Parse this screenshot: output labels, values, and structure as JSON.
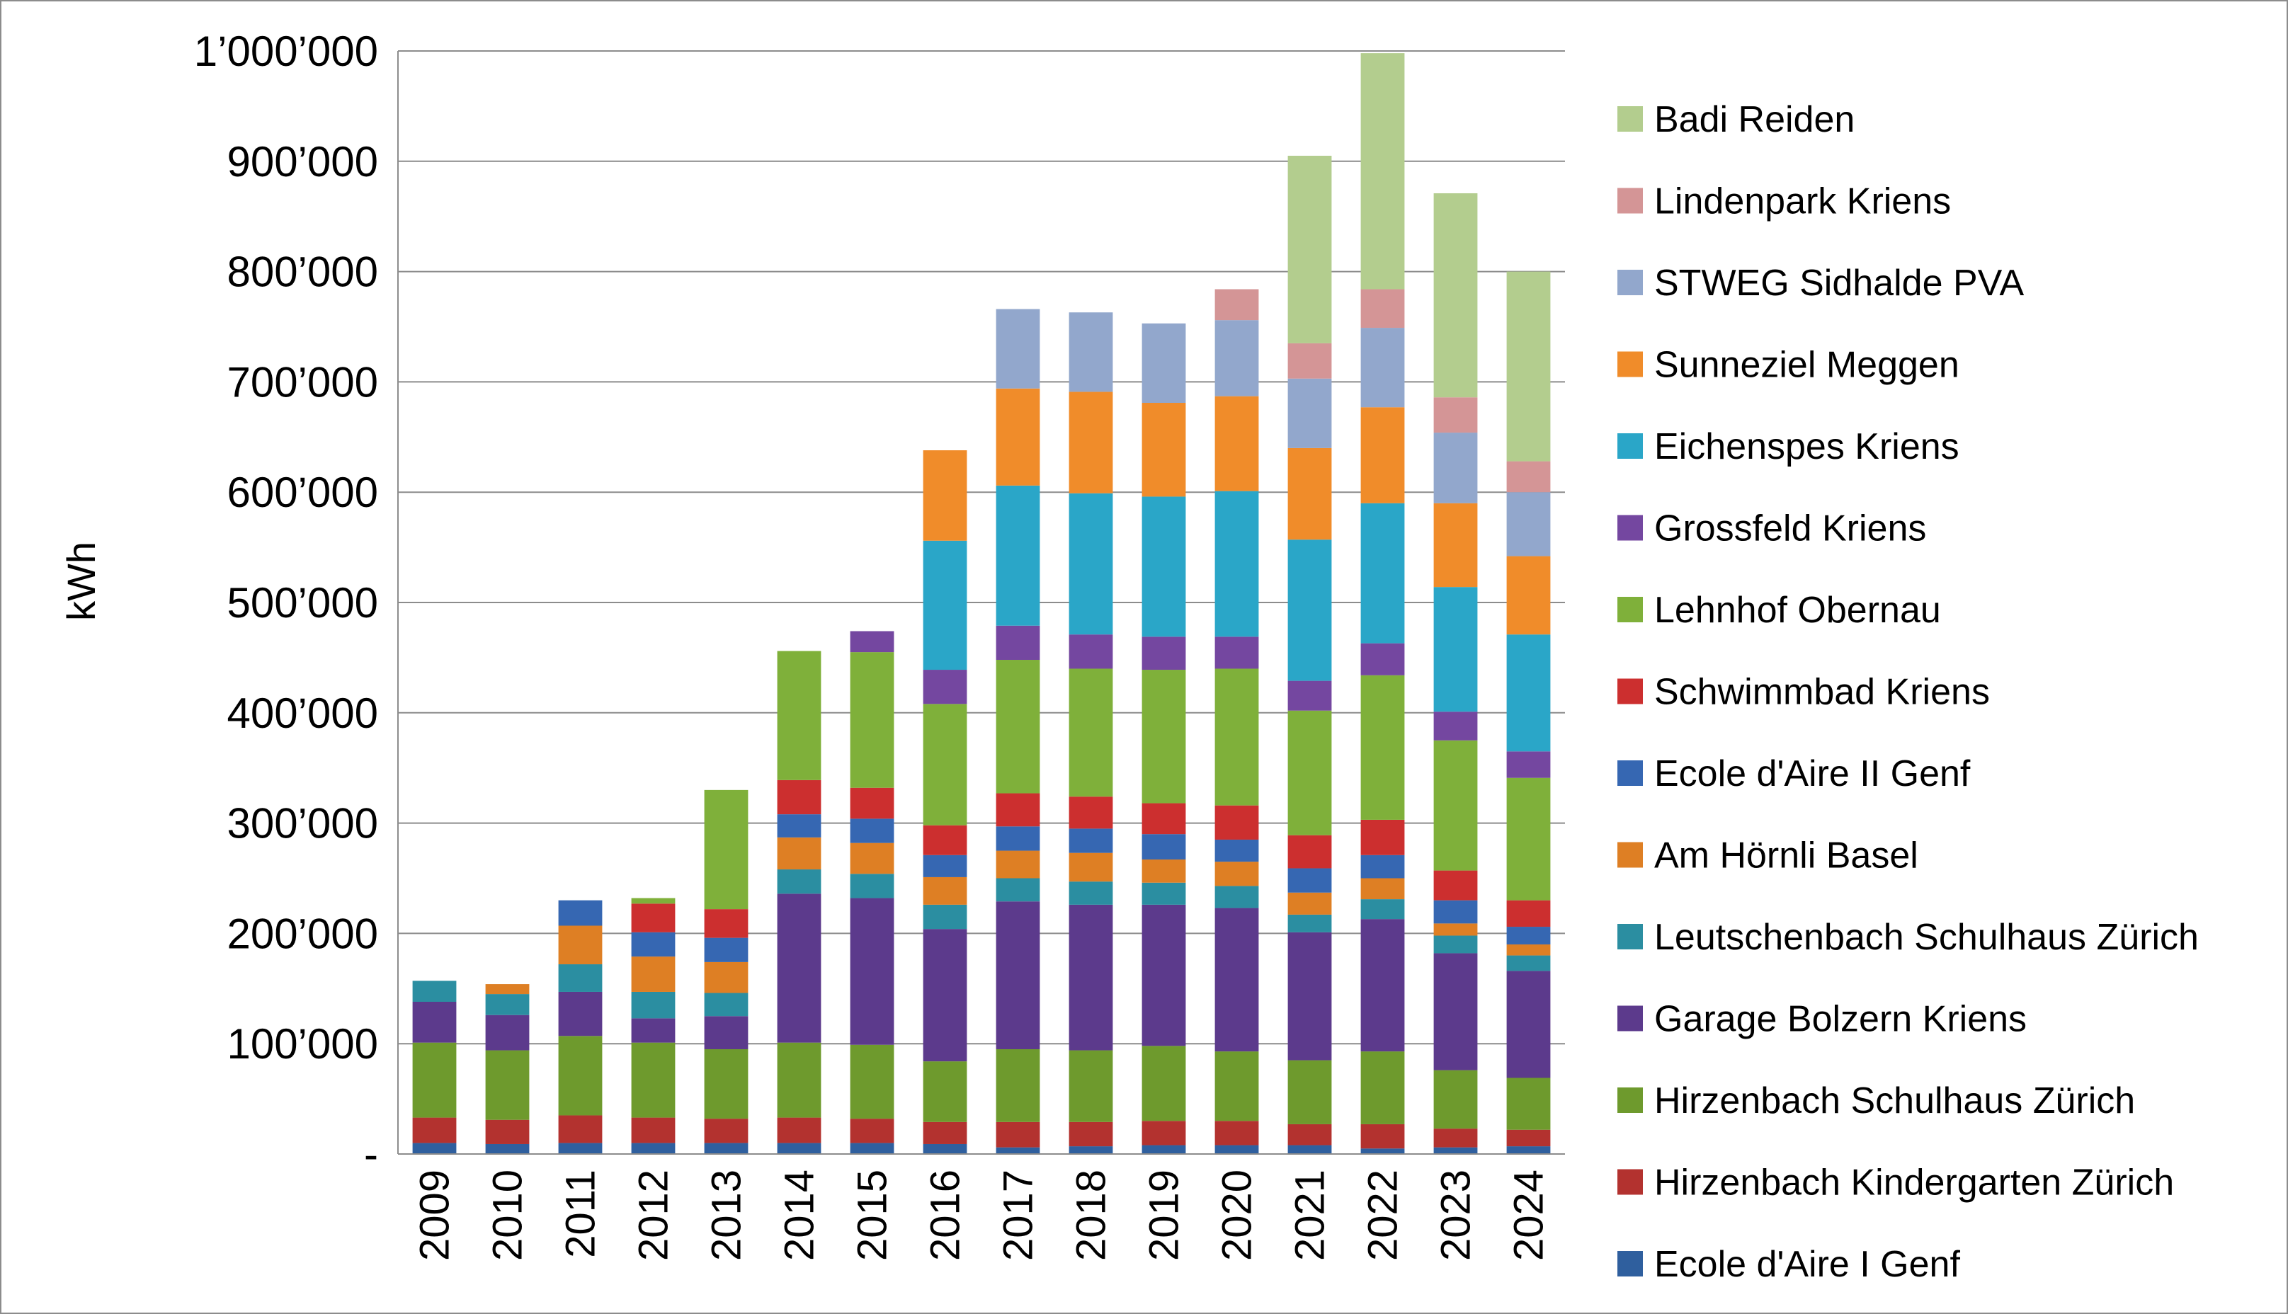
{
  "chart_data": {
    "type": "bar",
    "stacked": true,
    "title": "",
    "xlabel": "",
    "ylabel": "kWh",
    "ylim": [
      0,
      1000000
    ],
    "ytick_values": [
      0,
      100000,
      200000,
      300000,
      400000,
      500000,
      600000,
      700000,
      800000,
      900000,
      1000000
    ],
    "ytick_labels": [
      "-",
      "100’000",
      "200’000",
      "300’000",
      "400’000",
      "500’000",
      "600’000",
      "700’000",
      "800’000",
      "900’000",
      "1’000’000"
    ],
    "grid": "horizontal",
    "legend_position": "right",
    "categories": [
      "2009",
      "2010",
      "2011",
      "2012",
      "2013",
      "2014",
      "2015",
      "2016",
      "2017",
      "2018",
      "2019",
      "2020",
      "2021",
      "2022",
      "2023",
      "2024"
    ],
    "series": [
      {
        "name": "Ecole d'Aire I Genf",
        "color": "#2f5f9e",
        "values": [
          10000,
          9000,
          10000,
          10000,
          10000,
          10000,
          10000,
          9000,
          6000,
          7000,
          8000,
          8000,
          8000,
          5000,
          6000,
          7000
        ]
      },
      {
        "name": "Hirzenbach Kindergarten Zürich",
        "color": "#b3322f",
        "values": [
          23000,
          22000,
          25000,
          23000,
          22000,
          23000,
          22000,
          20000,
          23000,
          22000,
          22000,
          22000,
          19000,
          22000,
          17000,
          15000
        ]
      },
      {
        "name": "Hirzenbach Schulhaus Zürich",
        "color": "#6e9a2d",
        "values": [
          68000,
          63000,
          72000,
          68000,
          63000,
          68000,
          67000,
          55000,
          66000,
          65000,
          68000,
          63000,
          58000,
          66000,
          53000,
          47000
        ]
      },
      {
        "name": "Garage Bolzern Kriens",
        "color": "#5c3a8c",
        "values": [
          37000,
          32000,
          40000,
          22000,
          30000,
          135000,
          133000,
          120000,
          134000,
          132000,
          128000,
          130000,
          116000,
          120000,
          106000,
          97000
        ]
      },
      {
        "name": "Leutschenbach Schulhaus Zürich",
        "color": "#2b8ea1",
        "values": [
          19000,
          19000,
          25000,
          24000,
          21000,
          22000,
          22000,
          22000,
          21000,
          21000,
          20000,
          20000,
          16000,
          18000,
          16000,
          14000
        ]
      },
      {
        "name": "Am Hörnli Basel",
        "color": "#de7f24",
        "values": [
          0,
          9000,
          35000,
          32000,
          28000,
          29000,
          28000,
          25000,
          25000,
          26000,
          21000,
          22000,
          20000,
          19000,
          11000,
          10000
        ]
      },
      {
        "name": "Ecole d'Aire II Genf",
        "color": "#3667b2",
        "values": [
          0,
          0,
          23000,
          22000,
          22000,
          21000,
          22000,
          20000,
          22000,
          22000,
          23000,
          20000,
          22000,
          21000,
          21000,
          16000
        ]
      },
      {
        "name": "Schwimmbad Kriens",
        "color": "#cc2f2f",
        "values": [
          0,
          0,
          0,
          26000,
          26000,
          31000,
          28000,
          27000,
          30000,
          29000,
          28000,
          31000,
          30000,
          32000,
          27000,
          24000
        ]
      },
      {
        "name": "Lehnhof Obernau",
        "color": "#7fb03a",
        "values": [
          0,
          0,
          0,
          5000,
          108000,
          117000,
          123000,
          110000,
          121000,
          116000,
          121000,
          124000,
          113000,
          131000,
          118000,
          111000
        ]
      },
      {
        "name": "Grossfeld Kriens",
        "color": "#7447a0",
        "values": [
          0,
          0,
          0,
          0,
          0,
          0,
          19000,
          31000,
          31000,
          31000,
          30000,
          29000,
          27000,
          29000,
          26000,
          24000
        ]
      },
      {
        "name": "Eichenspes Kriens",
        "color": "#2aa6c8",
        "values": [
          0,
          0,
          0,
          0,
          0,
          0,
          0,
          117000,
          127000,
          128000,
          127000,
          132000,
          128000,
          127000,
          113000,
          106000
        ]
      },
      {
        "name": "Sunneziel Meggen",
        "color": "#f08c2a",
        "values": [
          0,
          0,
          0,
          0,
          0,
          0,
          0,
          82000,
          88000,
          92000,
          85000,
          86000,
          83000,
          87000,
          76000,
          71000
        ]
      },
      {
        "name": "STWEG Sidhalde PVA",
        "color": "#92a7cc",
        "values": [
          0,
          0,
          0,
          0,
          0,
          0,
          0,
          0,
          72000,
          72000,
          72000,
          69000,
          63000,
          72000,
          64000,
          58000
        ]
      },
      {
        "name": "Lindenpark Kriens",
        "color": "#d49596",
        "values": [
          0,
          0,
          0,
          0,
          0,
          0,
          0,
          0,
          0,
          0,
          0,
          28000,
          32000,
          35000,
          32000,
          28000
        ]
      },
      {
        "name": "Badi Reiden",
        "color": "#b3cd8e",
        "values": [
          0,
          0,
          0,
          0,
          0,
          0,
          0,
          0,
          0,
          0,
          0,
          0,
          170000,
          214000,
          185000,
          172000
        ]
      }
    ]
  }
}
